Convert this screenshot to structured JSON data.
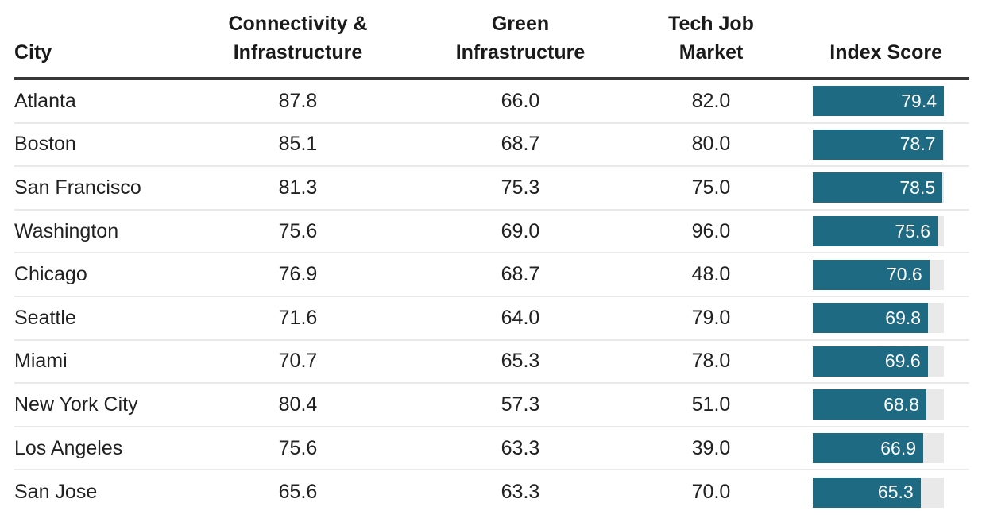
{
  "table": {
    "bar_scale_max": 79.4,
    "columns": [
      {
        "label": "City"
      },
      {
        "label": "Connectivity &\nInfrastructure"
      },
      {
        "label": "Green\nInfrastructure"
      },
      {
        "label": "Tech Job\nMarket"
      },
      {
        "label": "Index Score"
      }
    ],
    "rows": [
      {
        "city": "Atlanta",
        "connectivity": "87.8",
        "green": "66.0",
        "tech": "82.0",
        "index": "79.4"
      },
      {
        "city": "Boston",
        "connectivity": "85.1",
        "green": "68.7",
        "tech": "80.0",
        "index": "78.7"
      },
      {
        "city": "San Francisco",
        "connectivity": "81.3",
        "green": "75.3",
        "tech": "75.0",
        "index": "78.5"
      },
      {
        "city": "Washington",
        "connectivity": "75.6",
        "green": "69.0",
        "tech": "96.0",
        "index": "75.6"
      },
      {
        "city": "Chicago",
        "connectivity": "76.9",
        "green": "68.7",
        "tech": "48.0",
        "index": "70.6"
      },
      {
        "city": "Seattle",
        "connectivity": "71.6",
        "green": "64.0",
        "tech": "79.0",
        "index": "69.8"
      },
      {
        "city": "Miami",
        "connectivity": "70.7",
        "green": "65.3",
        "tech": "78.0",
        "index": "69.6"
      },
      {
        "city": "New York City",
        "connectivity": "80.4",
        "green": "57.3",
        "tech": "51.0",
        "index": "68.8"
      },
      {
        "city": "Los Angeles",
        "connectivity": "75.6",
        "green": "63.3",
        "tech": "39.0",
        "index": "66.9"
      },
      {
        "city": "San Jose",
        "connectivity": "65.6",
        "green": "63.3",
        "tech": "70.0",
        "index": "65.3"
      }
    ]
  },
  "colors": {
    "bar": "#1d6a82",
    "bar_track": "#e9e9e9",
    "header_rule": "#383838",
    "row_rule": "#e9e9e9",
    "text": "#212121",
    "bar_label": "#ffffff"
  },
  "chart_data": {
    "type": "table",
    "title": "",
    "columns": [
      "City",
      "Connectivity & Infrastructure",
      "Green Infrastructure",
      "Tech Job Market",
      "Index Score"
    ],
    "rows": [
      [
        "Atlanta",
        87.8,
        66.0,
        82.0,
        79.4
      ],
      [
        "Boston",
        85.1,
        68.7,
        80.0,
        78.7
      ],
      [
        "San Francisco",
        81.3,
        75.3,
        75.0,
        78.5
      ],
      [
        "Washington",
        75.6,
        69.0,
        96.0,
        75.6
      ],
      [
        "Chicago",
        76.9,
        68.7,
        48.0,
        70.6
      ],
      [
        "Seattle",
        71.6,
        64.0,
        79.0,
        69.8
      ],
      [
        "Miami",
        70.7,
        65.3,
        78.0,
        69.6
      ],
      [
        "New York City",
        80.4,
        57.3,
        51.0,
        68.8
      ],
      [
        "Los Angeles",
        75.6,
        63.3,
        39.0,
        66.9
      ],
      [
        "San Jose",
        65.6,
        63.3,
        70.0,
        65.3
      ]
    ],
    "index_score_bars": {
      "column": "Index Score",
      "axis_range": [
        0,
        79.4
      ],
      "bar_color": "#1d6a82",
      "track_color": "#e9e9e9",
      "value_labels": "inside-right, white"
    },
    "layout": {
      "grid": "horizontal row rules only",
      "header_rule": "thick dark",
      "legend": "none"
    }
  }
}
